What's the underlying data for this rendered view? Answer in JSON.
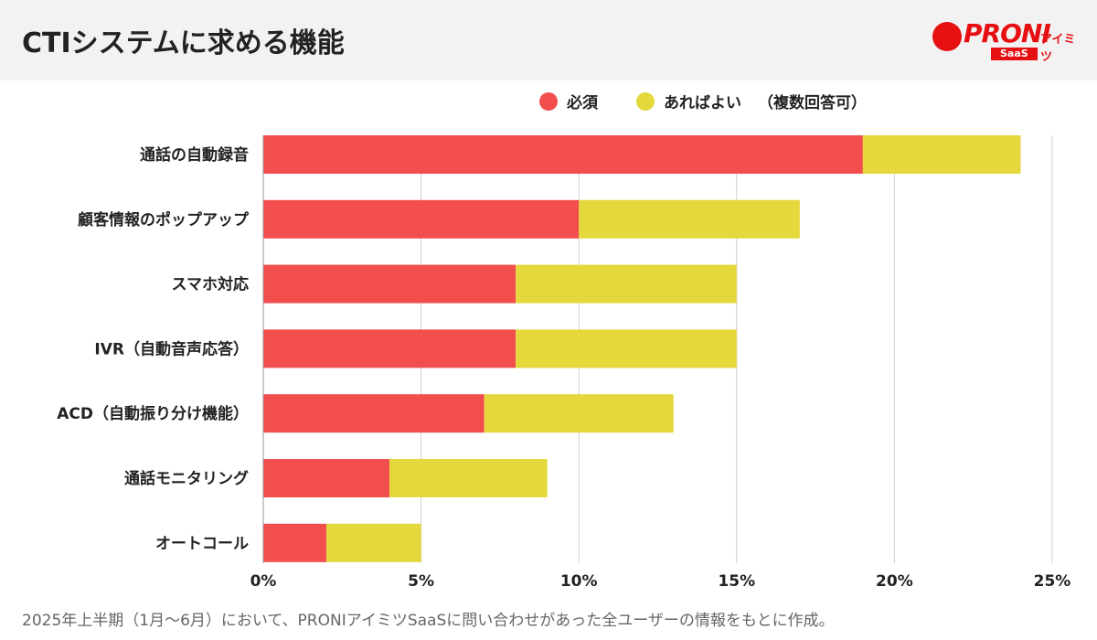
{
  "header": {
    "title": "CTIシステムに求める機能",
    "logo": {
      "text": "PRONI",
      "kana": "アイミツ",
      "sub": "SaaS"
    }
  },
  "legend": {
    "items": [
      {
        "label": "必須",
        "color": "#f24e4e"
      },
      {
        "label": "あればよい",
        "color": "#e5d83c"
      }
    ],
    "note": "（複数回答可）"
  },
  "footnote": "2025年上半期（1月〜6月）において、PRONIアイミツSaaSに問い合わせがあった全ユーザーの情報をもとに作成。",
  "chart_data": {
    "type": "bar",
    "orientation": "horizontal",
    "stacked": true,
    "categories": [
      "通話の自動録音",
      "顧客情報のポップアップ",
      "スマホ対応",
      "IVR（自動音声応答）",
      "ACD（自動振り分け機能）",
      "通話モニタリング",
      "オートコール"
    ],
    "series": [
      {
        "name": "必須",
        "color": "#f24e4e",
        "values": [
          19,
          10,
          8,
          8,
          7,
          4,
          2
        ]
      },
      {
        "name": "あればよい",
        "color": "#e5d83c",
        "values": [
          5,
          7,
          7,
          7,
          6,
          5,
          3
        ]
      }
    ],
    "xlim": [
      0,
      25
    ],
    "xticks": [
      0,
      5,
      10,
      15,
      20,
      25
    ],
    "tick_suffix": "%",
    "grid": true,
    "legend_position": "top"
  }
}
